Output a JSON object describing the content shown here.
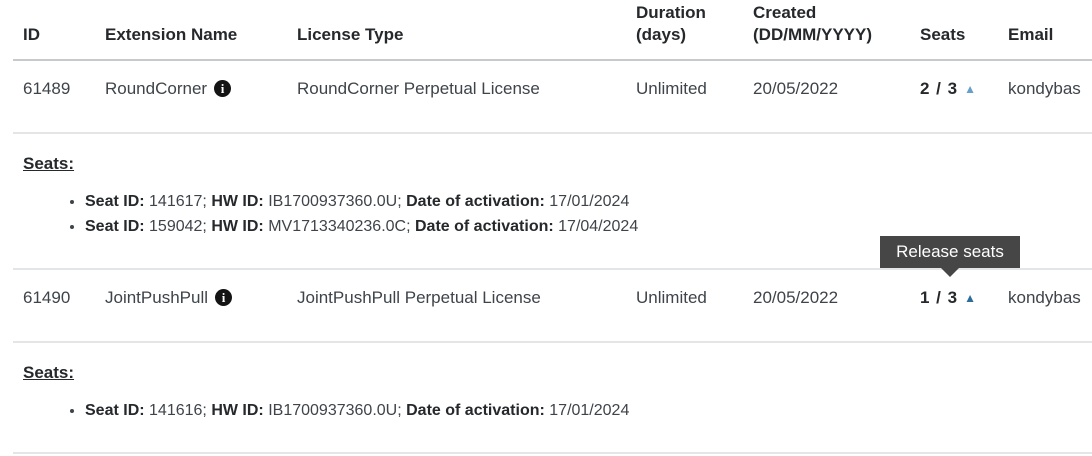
{
  "table": {
    "columns": [
      "ID",
      "Extension Name",
      "License Type",
      "Duration (days)",
      "Created (DD/MM/YYYY)",
      "Seats",
      "Email"
    ],
    "rows": [
      {
        "id": "61489",
        "extension_name": "RoundCorner",
        "license_type": "RoundCorner Perpetual License",
        "duration": "Unlimited",
        "created": "20/05/2022",
        "seats": "2 / 3",
        "email": "kondybas",
        "details": {
          "heading": "Seats:",
          "seats": [
            {
              "seat_id_label": "Seat ID:",
              "seat_id": "141617;",
              "hw_id_label": "HW ID:",
              "hw_id": "IB1700937360.0U;",
              "activation_label": "Date of activation:",
              "activation_date": "17/01/2024"
            },
            {
              "seat_id_label": "Seat ID:",
              "seat_id": "159042;",
              "hw_id_label": "HW ID:",
              "hw_id": "MV1713340236.0C;",
              "activation_label": "Date of activation:",
              "activation_date": "17/04/2024"
            }
          ]
        }
      },
      {
        "id": "61490",
        "extension_name": "JointPushPull",
        "license_type": "JointPushPull Perpetual License",
        "duration": "Unlimited",
        "created": "20/05/2022",
        "seats": "1 / 3",
        "email": "kondybas",
        "details": {
          "heading": "Seats:",
          "seats": [
            {
              "seat_id_label": "Seat ID:",
              "seat_id": "141616;",
              "hw_id_label": "HW ID:",
              "hw_id": "IB1700937360.0U;",
              "activation_label": "Date of activation:",
              "activation_date": "17/01/2024"
            }
          ]
        }
      }
    ]
  },
  "tooltip": {
    "label": "Release seats"
  },
  "icons": {
    "info": "i",
    "collapse": "▲"
  },
  "colors": {
    "arrow_blue": "#66a0c8",
    "arrow_blue_active": "#2e6d99",
    "tooltip_bg": "#464646",
    "tooltip_text": "#ffffff",
    "header_border": "#c6cacd",
    "row_border": "#e3e5e7"
  }
}
